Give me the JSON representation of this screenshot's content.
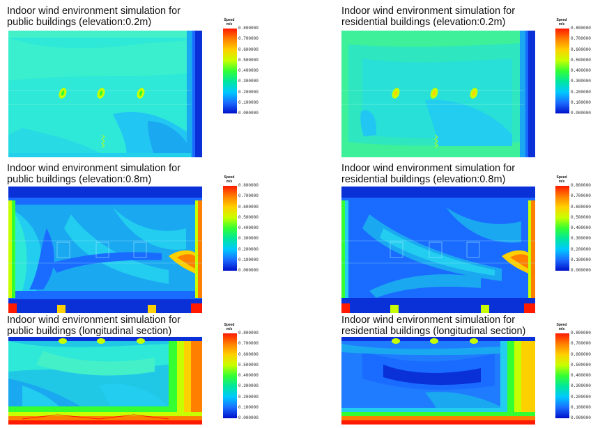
{
  "legend": {
    "title": "Speed",
    "unit": "m/s",
    "ticks": [
      "0.800000",
      "0.700000",
      "0.600000",
      "0.500000",
      "0.400000",
      "0.300000",
      "0.200000",
      "0.100000",
      "0.000000"
    ],
    "colors": [
      "#ff1a00",
      "#ff8000",
      "#ffd000",
      "#c8ff00",
      "#33ff33",
      "#00e6a0",
      "#00c8ff",
      "#1a6bff",
      "#0010c8"
    ]
  },
  "panels": [
    {
      "id": "pub-02",
      "title_line1": "Indoor wind environment simulation for",
      "title_line2": "public buildings  (elevation:0.2m)",
      "base": "#2ee8d8",
      "variant": "pub-low"
    },
    {
      "id": "res-02",
      "title_line1": "Indoor wind environment simulation for",
      "title_line2": "residential buildings  (elevation:0.2m)",
      "base": "#3ef09a",
      "variant": "res-low"
    },
    {
      "id": "pub-08",
      "title_line1": "Indoor wind environment simulation for",
      "title_line2": "public buildings  (elevation:0.8m)",
      "base": "#1aa8f0",
      "variant": "pub-mid"
    },
    {
      "id": "res-08",
      "title_line1": "Indoor wind environment simulation for",
      "title_line2": "residential buildings  (elevation:0.8m)",
      "base": "#1a6bff",
      "variant": "res-mid"
    },
    {
      "id": "pub-sec",
      "title_line1": "Indoor wind environment simulation for",
      "title_line2": "public buildings  (longitudinal section)",
      "base": "#20c8e6",
      "variant": "pub-sec"
    },
    {
      "id": "res-sec",
      "title_line1": "Indoor wind environment simulation for",
      "title_line2": "residential buildings  (longitudinal section)",
      "base": "#1f7cff",
      "variant": "res-sec"
    }
  ]
}
